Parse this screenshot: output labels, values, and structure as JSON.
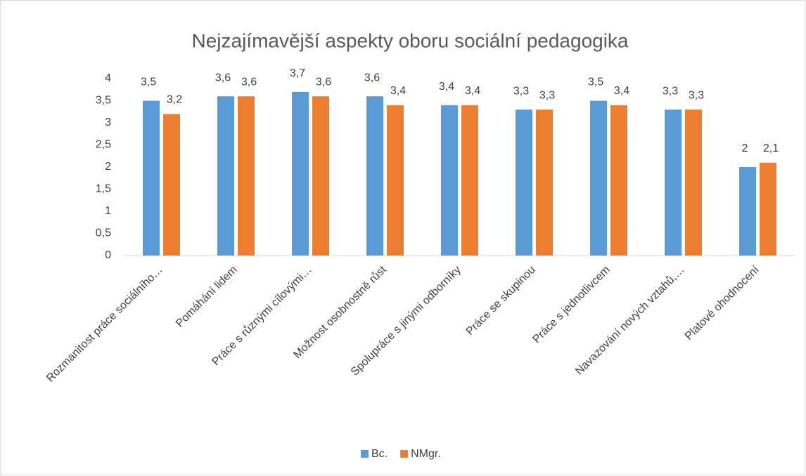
{
  "chart_data": {
    "type": "bar",
    "title": "Nejzajímavější aspekty oboru sociální pedagogika",
    "categories": [
      "Rozmanitost práce sociálního…",
      "Pomáhání lidem",
      "Práce s různými cílovými…",
      "Možnost osobnostně růst",
      "Spolupráce s jinými odborníky",
      "Práce se skupinou",
      "Práce s jednotlivcem",
      "Navazování nových vztahů,…",
      "Platové ohodnocení"
    ],
    "series": [
      {
        "name": "Bc.",
        "color": "#5b9bd5",
        "values": [
          3.5,
          3.6,
          3.7,
          3.6,
          3.4,
          3.3,
          3.5,
          3.3,
          2
        ],
        "value_labels": [
          "3,5",
          "3,6",
          "3,7",
          "3,6",
          "3,4",
          "3,3",
          "3,5",
          "3,3",
          "2"
        ]
      },
      {
        "name": "NMgr.",
        "color": "#ed7d31",
        "values": [
          3.2,
          3.6,
          3.6,
          3.4,
          3.4,
          3.3,
          3.4,
          3.3,
          2.1
        ],
        "value_labels": [
          "3,2",
          "3,6",
          "3,6",
          "3,4",
          "3,4",
          "3,3",
          "3,4",
          "3,3",
          "2,1"
        ]
      }
    ],
    "ylim": [
      0,
      4
    ],
    "yticks": [
      0,
      {
        "value": 0.5,
        "label": "0,5"
      },
      1,
      {
        "value": 1.5,
        "label": "1,5"
      },
      2,
      {
        "value": 2.5,
        "label": "2,5"
      },
      3,
      {
        "value": 3.5,
        "label": "3,5"
      },
      4
    ],
    "grid": false,
    "legend": "bottom"
  }
}
